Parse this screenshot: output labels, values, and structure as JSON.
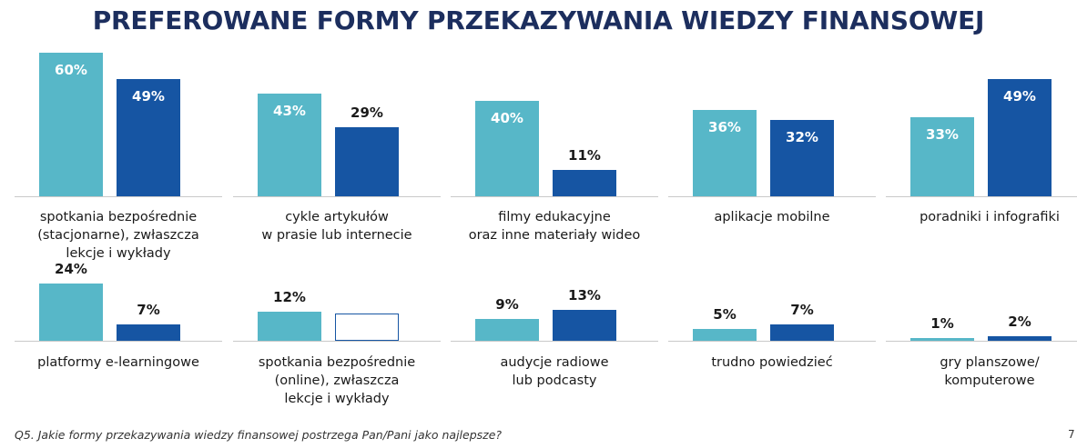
{
  "title": "PREFEROWANE FORMY PRZEKAZYWANIA WIEDZY FINANSOWEJ",
  "question": "Q5. Jakie formy przekazywania wiedzy finansowej postrzega Pan/Pani jako najlepsze?",
  "page_number": "7",
  "colors": {
    "series_a": "#57b7c8",
    "series_b": "#1655a3",
    "title": "#1c2e5e"
  },
  "chart_data": {
    "type": "bar",
    "title": "PREFEROWANE FORMY PRZEKAZYWANIA WIEDZY FINANSOWEJ",
    "xlabel": "",
    "ylabel": "",
    "grid": false,
    "legend": "none",
    "series": [
      {
        "values": [
          60,
          43,
          40,
          36,
          33,
          24,
          12,
          9,
          5,
          1
        ]
      },
      {
        "values": [
          49,
          29,
          11,
          32,
          49,
          7,
          null,
          13,
          7,
          2
        ]
      }
    ],
    "categories": [
      "spotkania bezpośrednie\n(stacjonarne), zwłaszcza\nlekcje i wykłady",
      "cykle artykułów\nw prasie lub internecie",
      "filmy edukacyjne\noraz inne materiały wideo",
      "aplikacje mobilne",
      "poradniki i infografiki",
      "platformy e-learningowe",
      "spotkania bezpośrednie\n(online), zwłaszcza\nlekcje i wykłady",
      "audycje radiowe\nlub podcasty",
      "trudno powiedzieć",
      "gry planszowe/\nkomputerowe"
    ],
    "labels": [
      [
        "60%",
        "49%"
      ],
      [
        "43%",
        "29%"
      ],
      [
        "40%",
        "11%"
      ],
      [
        "36%",
        "32%"
      ],
      [
        "33%",
        "49%"
      ],
      [
        "24%",
        "7%"
      ],
      [
        "12%",
        ""
      ],
      [
        "9%",
        "13%"
      ],
      [
        "5%",
        "7%"
      ],
      [
        "1%",
        "2%"
      ]
    ]
  }
}
